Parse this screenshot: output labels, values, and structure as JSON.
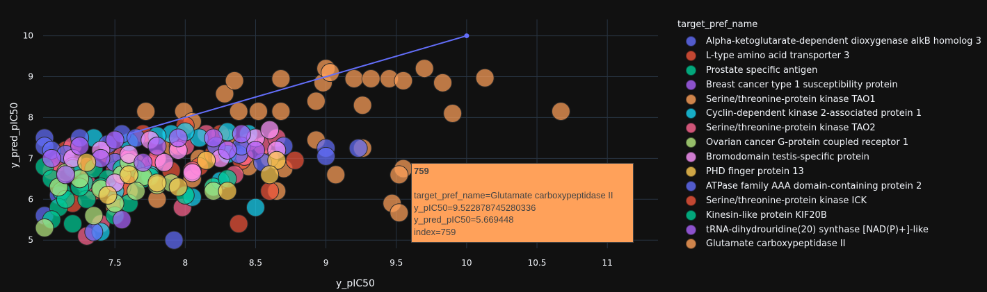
{
  "legend": {
    "title": "target_pref_name",
    "items": [
      {
        "label": "Alpha-ketoglutarate-dependent dioxygenase alkB homolog 3",
        "color": "#636efa"
      },
      {
        "label": "L-type amino acid transporter 3",
        "color": "#EF553B"
      },
      {
        "label": "Prostate specific antigen",
        "color": "#00cc96"
      },
      {
        "label": "Breast cancer type 1 susceptibility protein",
        "color": "#ab63fa"
      },
      {
        "label": "Serine/threonine-protein kinase TAO1",
        "color": "#FFA15A"
      },
      {
        "label": "Cyclin-dependent kinase 2-associated protein 1",
        "color": "#19d3f3"
      },
      {
        "label": "Serine/threonine-protein kinase TAO2",
        "color": "#FF6692"
      },
      {
        "label": "Ovarian cancer G-protein coupled receptor 1",
        "color": "#B6E880"
      },
      {
        "label": "Bromodomain testis-specific protein",
        "color": "#FF97FF"
      },
      {
        "label": "PHD finger protein 13",
        "color": "#FECB52"
      },
      {
        "label": "ATPase family AAA domain-containing protein 2",
        "color": "#636efa"
      },
      {
        "label": "Serine/threonine-protein kinase ICK",
        "color": "#EF553B"
      },
      {
        "label": "Kinesin-like protein KIF20B",
        "color": "#00cc96"
      },
      {
        "label": "tRNA-dihydrouridine(20) synthase [NAD(P)+]-like",
        "color": "#ab63fa"
      },
      {
        "label": "Glutamate carboxypeptidase II",
        "color": "#FFA15A"
      }
    ]
  },
  "hover": {
    "title": "759",
    "line1": "target_pref_name=Glutamate carboxypeptidase II",
    "line2": "y_pIC50=9.522878745280336",
    "line3": "y_pred_pIC50=5.669448",
    "line4": "index=759"
  },
  "chart_data": {
    "type": "scatter",
    "xlabel": "y_pIC50",
    "ylabel": "y_pred_pIC50",
    "xlim": [
      6.99,
      11.36
    ],
    "ylim": [
      4.8,
      10.4
    ],
    "xticks": [
      7.5,
      8,
      8.5,
      9,
      9.5,
      10,
      10.5,
      11
    ],
    "yticks": [
      5,
      6,
      7,
      8,
      9,
      10
    ],
    "grid": true,
    "legend_position": "right",
    "reference_line": {
      "x": [
        7.6,
        10
      ],
      "y": [
        7.6,
        10
      ],
      "color": "#636efa"
    },
    "series": [
      {
        "name": "Glutamate carboxypeptidase II",
        "color": "#FFA15A",
        "points": [
          [
            8.28,
            8.58
          ],
          [
            8.35,
            8.9
          ],
          [
            8.68,
            8.95
          ],
          [
            8.98,
            8.85
          ],
          [
            9.0,
            9.2
          ],
          [
            9.03,
            9.1
          ],
          [
            9.2,
            8.95
          ],
          [
            9.32,
            8.95
          ],
          [
            9.45,
            8.95
          ],
          [
            9.55,
            8.9
          ],
          [
            9.7,
            9.2
          ],
          [
            9.83,
            8.85
          ],
          [
            10.13,
            8.97
          ],
          [
            9.9,
            8.1
          ],
          [
            10.67,
            8.15
          ],
          [
            9.26,
            8.3
          ],
          [
            8.93,
            8.4
          ],
          [
            8.38,
            8.15
          ],
          [
            8.52,
            8.15
          ],
          [
            8.68,
            8.15
          ],
          [
            7.72,
            8.15
          ],
          [
            7.99,
            8.15
          ],
          [
            8.93,
            7.45
          ],
          [
            9.26,
            7.25
          ],
          [
            9.55,
            6.75
          ],
          [
            9.52,
            6.6
          ],
          [
            9.07,
            6.6
          ],
          [
            9.47,
            5.9
          ],
          [
            9.52,
            5.67
          ],
          [
            8.7,
            6.75
          ],
          [
            8.45,
            6.8
          ],
          [
            8.65,
            6.2
          ],
          [
            8.1,
            7.0
          ],
          [
            8.05,
            6.5
          ],
          [
            7.9,
            7.3
          ],
          [
            7.65,
            6.9
          ],
          [
            7.6,
            6.2
          ],
          [
            8.3,
            7.5
          ],
          [
            7.8,
            6.0
          ],
          [
            8.2,
            6.3
          ],
          [
            8.6,
            7.0
          ],
          [
            8.05,
            7.9
          ],
          [
            7.3,
            6.3
          ],
          [
            7.5,
            5.8
          ]
        ]
      },
      {
        "name": "L-type amino acid transporter 3",
        "color": "#EF553B",
        "points": [
          [
            7.15,
            7.2
          ],
          [
            7.3,
            6.8
          ],
          [
            7.45,
            7.1
          ],
          [
            7.6,
            6.6
          ],
          [
            7.8,
            6.95
          ],
          [
            7.95,
            7.3
          ],
          [
            8.1,
            6.8
          ],
          [
            8.25,
            7.6
          ],
          [
            8.4,
            6.95
          ],
          [
            8.6,
            6.2
          ],
          [
            8.78,
            6.95
          ],
          [
            7.2,
            5.9
          ],
          [
            7.55,
            6.3
          ],
          [
            7.9,
            6.7
          ],
          [
            8.38,
            5.4
          ],
          [
            7.05,
            6.7
          ],
          [
            7.7,
            7.6
          ],
          [
            8.0,
            7.8
          ],
          [
            7.35,
            6.2
          ],
          [
            8.2,
            7.1
          ]
        ]
      },
      {
        "name": "Serine/threonine-protein kinase TAO2",
        "color": "#FF6692",
        "points": [
          [
            7.1,
            6.9
          ],
          [
            7.3,
            6.4
          ],
          [
            7.55,
            7.05
          ],
          [
            7.75,
            6.85
          ],
          [
            7.98,
            5.8
          ],
          [
            8.05,
            6.7
          ],
          [
            8.3,
            7.2
          ],
          [
            8.42,
            7.05
          ],
          [
            8.55,
            7.3
          ],
          [
            8.65,
            7.5
          ],
          [
            7.3,
            5.1
          ],
          [
            7.4,
            5.4
          ],
          [
            7.8,
            7.0
          ],
          [
            8.0,
            7.3
          ],
          [
            8.15,
            7.6
          ],
          [
            7.2,
            7.3
          ],
          [
            7.6,
            7.0
          ],
          [
            8.45,
            7.4
          ],
          [
            7.5,
            6.7
          ],
          [
            8.35,
            6.6
          ]
        ]
      },
      {
        "name": "Cyclin-dependent kinase 2-associated protein 1",
        "color": "#19d3f3",
        "points": [
          [
            7.35,
            7.5
          ],
          [
            7.6,
            7.4
          ],
          [
            7.9,
            7.6
          ],
          [
            8.1,
            7.5
          ],
          [
            8.3,
            7.65
          ],
          [
            8.45,
            7.6
          ],
          [
            8.5,
            5.8
          ],
          [
            8.3,
            7.1
          ],
          [
            7.5,
            6.2
          ],
          [
            7.75,
            6.6
          ],
          [
            8.05,
            6.05
          ],
          [
            8.25,
            6.45
          ],
          [
            7.4,
            5.2
          ],
          [
            7.8,
            7.55
          ],
          [
            8.0,
            7.65
          ]
        ]
      },
      {
        "name": "Alpha-ketoglutarate-dependent dioxygenase alkB homolog 3",
        "color": "#636efa",
        "points": [
          [
            7.0,
            7.5
          ],
          [
            7.0,
            7.3
          ],
          [
            7.05,
            7.2
          ],
          [
            7.15,
            7.1
          ],
          [
            7.25,
            7.5
          ],
          [
            7.45,
            7.35
          ],
          [
            7.55,
            7.6
          ],
          [
            7.65,
            7.5
          ],
          [
            7.92,
            5.0
          ],
          [
            8.22,
            7.3
          ],
          [
            8.38,
            7.1
          ],
          [
            8.4,
            7.3
          ],
          [
            8.7,
            7.3
          ],
          [
            9.0,
            7.25
          ],
          [
            9.0,
            7.05
          ],
          [
            9.23,
            7.25
          ],
          [
            7.2,
            6.8
          ],
          [
            7.1,
            6.1
          ],
          [
            7.35,
            5.2
          ],
          [
            7.0,
            5.6
          ],
          [
            7.5,
            6.9
          ],
          [
            8.55,
            6.9
          ]
        ]
      },
      {
        "name": "Prostate specific antigen",
        "color": "#00cc96",
        "points": [
          [
            7.0,
            6.8
          ],
          [
            7.05,
            6.5
          ],
          [
            7.12,
            6.2
          ],
          [
            7.2,
            6.75
          ],
          [
            7.28,
            6.4
          ],
          [
            7.35,
            6.75
          ],
          [
            7.45,
            6.5
          ],
          [
            7.55,
            6.75
          ],
          [
            7.65,
            6.75
          ],
          [
            7.75,
            6.55
          ],
          [
            7.1,
            5.8
          ],
          [
            7.2,
            5.4
          ],
          [
            7.3,
            6.0
          ],
          [
            7.4,
            6.3
          ],
          [
            7.6,
            5.9
          ],
          [
            7.05,
            5.5
          ],
          [
            7.15,
            6.0
          ],
          [
            7.25,
            6.3
          ],
          [
            7.5,
            5.6
          ],
          [
            7.7,
            6.5
          ],
          [
            8.0,
            6.1
          ],
          [
            8.2,
            6.3
          ],
          [
            8.3,
            6.5
          ]
        ]
      },
      {
        "name": "Ovarian cancer G-protein coupled receptor 1",
        "color": "#B6E880",
        "points": [
          [
            7.1,
            6.3
          ],
          [
            7.25,
            6.5
          ],
          [
            7.4,
            6.25
          ],
          [
            7.55,
            6.6
          ],
          [
            7.7,
            6.55
          ],
          [
            7.8,
            6.35
          ],
          [
            7.65,
            6.2
          ],
          [
            7.15,
            6.65
          ],
          [
            7.35,
            5.6
          ],
          [
            7.5,
            5.9
          ],
          [
            7.9,
            6.4
          ],
          [
            8.2,
            6.2
          ],
          [
            7.0,
            5.3
          ],
          [
            7.6,
            6.9
          ]
        ]
      },
      {
        "name": "Bromodomain testis-specific protein",
        "color": "#FF97FF",
        "points": [
          [
            7.2,
            7.0
          ],
          [
            7.4,
            7.2
          ],
          [
            7.6,
            7.1
          ],
          [
            7.85,
            6.9
          ],
          [
            8.05,
            6.65
          ],
          [
            8.25,
            7.0
          ],
          [
            8.5,
            7.5
          ],
          [
            8.65,
            7.2
          ],
          [
            7.75,
            7.45
          ],
          [
            7.5,
            6.4
          ],
          [
            7.95,
            7.2
          ],
          [
            8.6,
            7.7
          ]
        ]
      },
      {
        "name": "Breast cancer type 1 susceptibility protein",
        "color": "#ab63fa",
        "points": [
          [
            7.05,
            7.0
          ],
          [
            7.25,
            7.3
          ],
          [
            7.5,
            7.45
          ],
          [
            7.8,
            7.3
          ],
          [
            8.2,
            7.5
          ],
          [
            8.4,
            7.6
          ],
          [
            7.4,
            7.0
          ],
          [
            7.7,
            6.9
          ],
          [
            8.3,
            7.2
          ],
          [
            7.55,
            5.5
          ],
          [
            7.15,
            6.6
          ],
          [
            8.5,
            7.2
          ],
          [
            7.95,
            7.5
          ]
        ]
      },
      {
        "name": "PHD finger protein 13",
        "color": "#FECB52",
        "points": [
          [
            7.3,
            6.9
          ],
          [
            7.6,
            6.6
          ],
          [
            7.95,
            6.3
          ],
          [
            8.15,
            6.95
          ],
          [
            8.3,
            6.2
          ],
          [
            8.65,
            6.95
          ],
          [
            7.45,
            6.1
          ],
          [
            7.8,
            6.4
          ],
          [
            8.6,
            6.6
          ]
        ]
      }
    ]
  }
}
